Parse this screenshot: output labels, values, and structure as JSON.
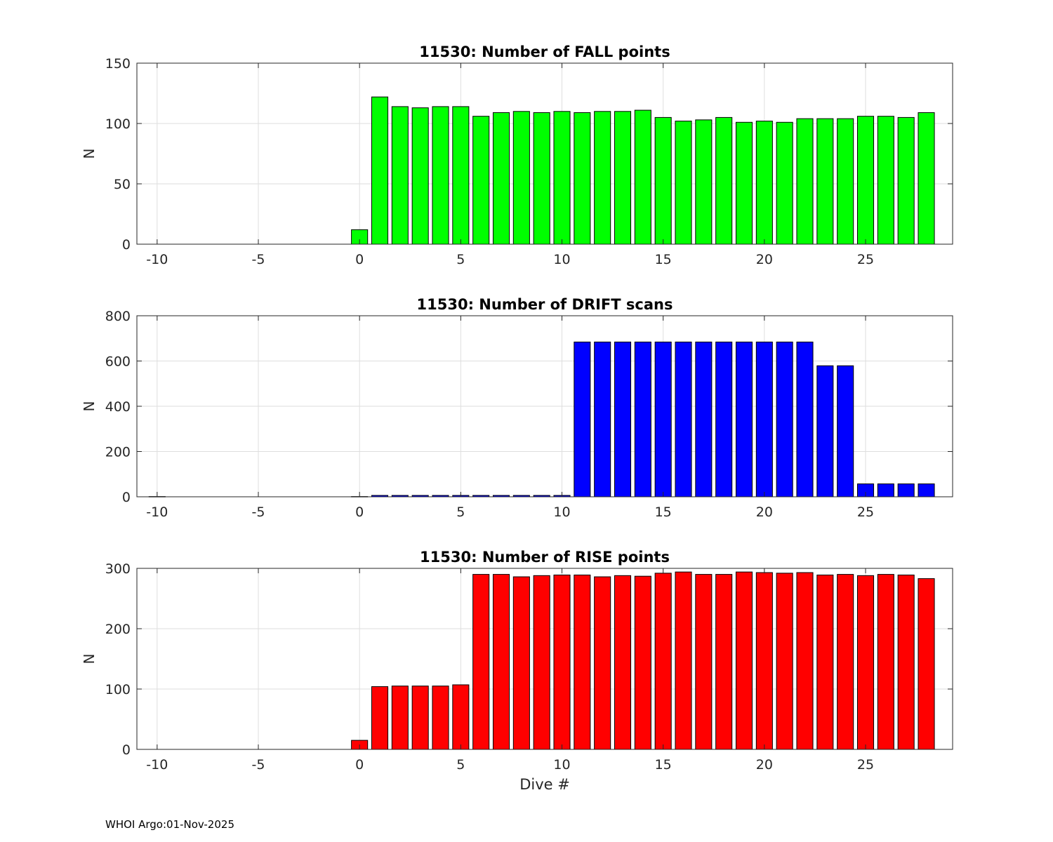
{
  "footer": {
    "text": "WHOI Argo:01-Nov-2025"
  },
  "chart_data": [
    {
      "type": "bar",
      "title": "11530: Number of FALL points",
      "xlabel": "",
      "ylabel": "N",
      "xlim": [
        -11,
        29.3
      ],
      "ylim": [
        0,
        150
      ],
      "xticks": [
        -10,
        -5,
        0,
        5,
        10,
        15,
        20,
        25
      ],
      "xtick_labels": [
        "-10",
        "-5",
        "0",
        "5",
        "10",
        "15",
        "20",
        "25"
      ],
      "yticks": [
        0,
        50,
        100,
        150
      ],
      "ytick_labels": [
        "0",
        "50",
        "100",
        "150"
      ],
      "grid": true,
      "color": "#00ff00",
      "x": [
        0,
        1,
        2,
        3,
        4,
        5,
        6,
        7,
        8,
        9,
        10,
        11,
        12,
        13,
        14,
        15,
        16,
        17,
        18,
        19,
        20,
        21,
        22,
        23,
        24,
        25,
        26,
        27,
        28
      ],
      "values": [
        12,
        122,
        114,
        113,
        114,
        114,
        106,
        109,
        110,
        109,
        110,
        109,
        110,
        110,
        111,
        105,
        102,
        103,
        105,
        101,
        102,
        101,
        104,
        104,
        104,
        106,
        106,
        105,
        109
      ]
    },
    {
      "type": "bar",
      "title": "11530: Number of DRIFT scans",
      "xlabel": "",
      "ylabel": "N",
      "xlim": [
        -11,
        29.3
      ],
      "ylim": [
        0,
        800
      ],
      "xticks": [
        -10,
        -5,
        0,
        5,
        10,
        15,
        20,
        25
      ],
      "xtick_labels": [
        "-10",
        "-5",
        "0",
        "5",
        "10",
        "15",
        "20",
        "25"
      ],
      "yticks": [
        0,
        200,
        400,
        600,
        800
      ],
      "ytick_labels": [
        "0",
        "200",
        "400",
        "600",
        "800"
      ],
      "grid": true,
      "color": "#0000ff",
      "x": [
        -10,
        0,
        1,
        2,
        3,
        4,
        5,
        6,
        7,
        8,
        9,
        10,
        11,
        12,
        13,
        14,
        15,
        16,
        17,
        18,
        19,
        20,
        21,
        22,
        23,
        24,
        25,
        26,
        27,
        28
      ],
      "values": [
        1,
        1,
        6,
        6,
        6,
        6,
        6,
        6,
        6,
        6,
        6,
        6,
        684,
        684,
        684,
        684,
        684,
        684,
        684,
        684,
        684,
        684,
        684,
        684,
        579,
        579,
        57,
        57,
        57,
        57
      ]
    },
    {
      "type": "bar",
      "title": "11530: Number of RISE points",
      "xlabel": "Dive #",
      "ylabel": "N",
      "xlim": [
        -11,
        29.3
      ],
      "ylim": [
        0,
        300
      ],
      "xticks": [
        -10,
        -5,
        0,
        5,
        10,
        15,
        20,
        25
      ],
      "xtick_labels": [
        "-10",
        "-5",
        "0",
        "5",
        "10",
        "15",
        "20",
        "25"
      ],
      "yticks": [
        0,
        100,
        200,
        300
      ],
      "ytick_labels": [
        "0",
        "100",
        "200",
        "300"
      ],
      "grid": true,
      "color": "#ff0000",
      "x": [
        0,
        1,
        2,
        3,
        4,
        5,
        6,
        7,
        8,
        9,
        10,
        11,
        12,
        13,
        14,
        15,
        16,
        17,
        18,
        19,
        20,
        21,
        22,
        23,
        24,
        25,
        26,
        27,
        28
      ],
      "values": [
        15,
        104,
        105,
        105,
        105,
        107,
        290,
        290,
        286,
        288,
        289,
        289,
        286,
        288,
        287,
        292,
        294,
        290,
        290,
        294,
        293,
        292,
        293,
        289,
        290,
        288,
        290,
        289,
        283
      ]
    }
  ]
}
